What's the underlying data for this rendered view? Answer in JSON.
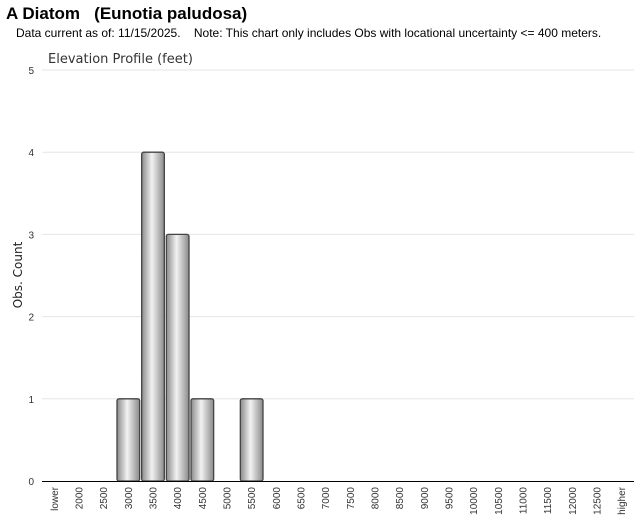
{
  "header": {
    "title": "A Diatom   (Eunotia paludosa)",
    "subtitle": "Data current as of: 11/15/2025.    Note: This chart only includes Obs with locational uncertainty <= 400 meters."
  },
  "chart_data": {
    "type": "bar",
    "title": "Elevation Profile (feet)",
    "xlabel": "",
    "ylabel": "Obs. Count",
    "categories": [
      "lower",
      "2000",
      "2500",
      "3000",
      "3500",
      "4000",
      "4500",
      "5000",
      "5500",
      "6000",
      "6500",
      "7000",
      "7500",
      "8000",
      "8500",
      "9000",
      "9500",
      "10000",
      "10500",
      "11000",
      "11500",
      "12000",
      "12500",
      "higher"
    ],
    "values": [
      0,
      0,
      0,
      1,
      4,
      3,
      1,
      0,
      1,
      0,
      0,
      0,
      0,
      0,
      0,
      0,
      0,
      0,
      0,
      0,
      0,
      0,
      0,
      0
    ],
    "ylim": [
      0,
      5
    ],
    "yticks": [
      0,
      1,
      2,
      3,
      4,
      5
    ],
    "grid": true,
    "legend": "none",
    "colors": {
      "bar_light": "#f2f2f2",
      "bar_dark": "#8a8a8a",
      "bar_stroke": "#444444",
      "grid": "#e6e6e6",
      "axis": "#000000"
    }
  }
}
